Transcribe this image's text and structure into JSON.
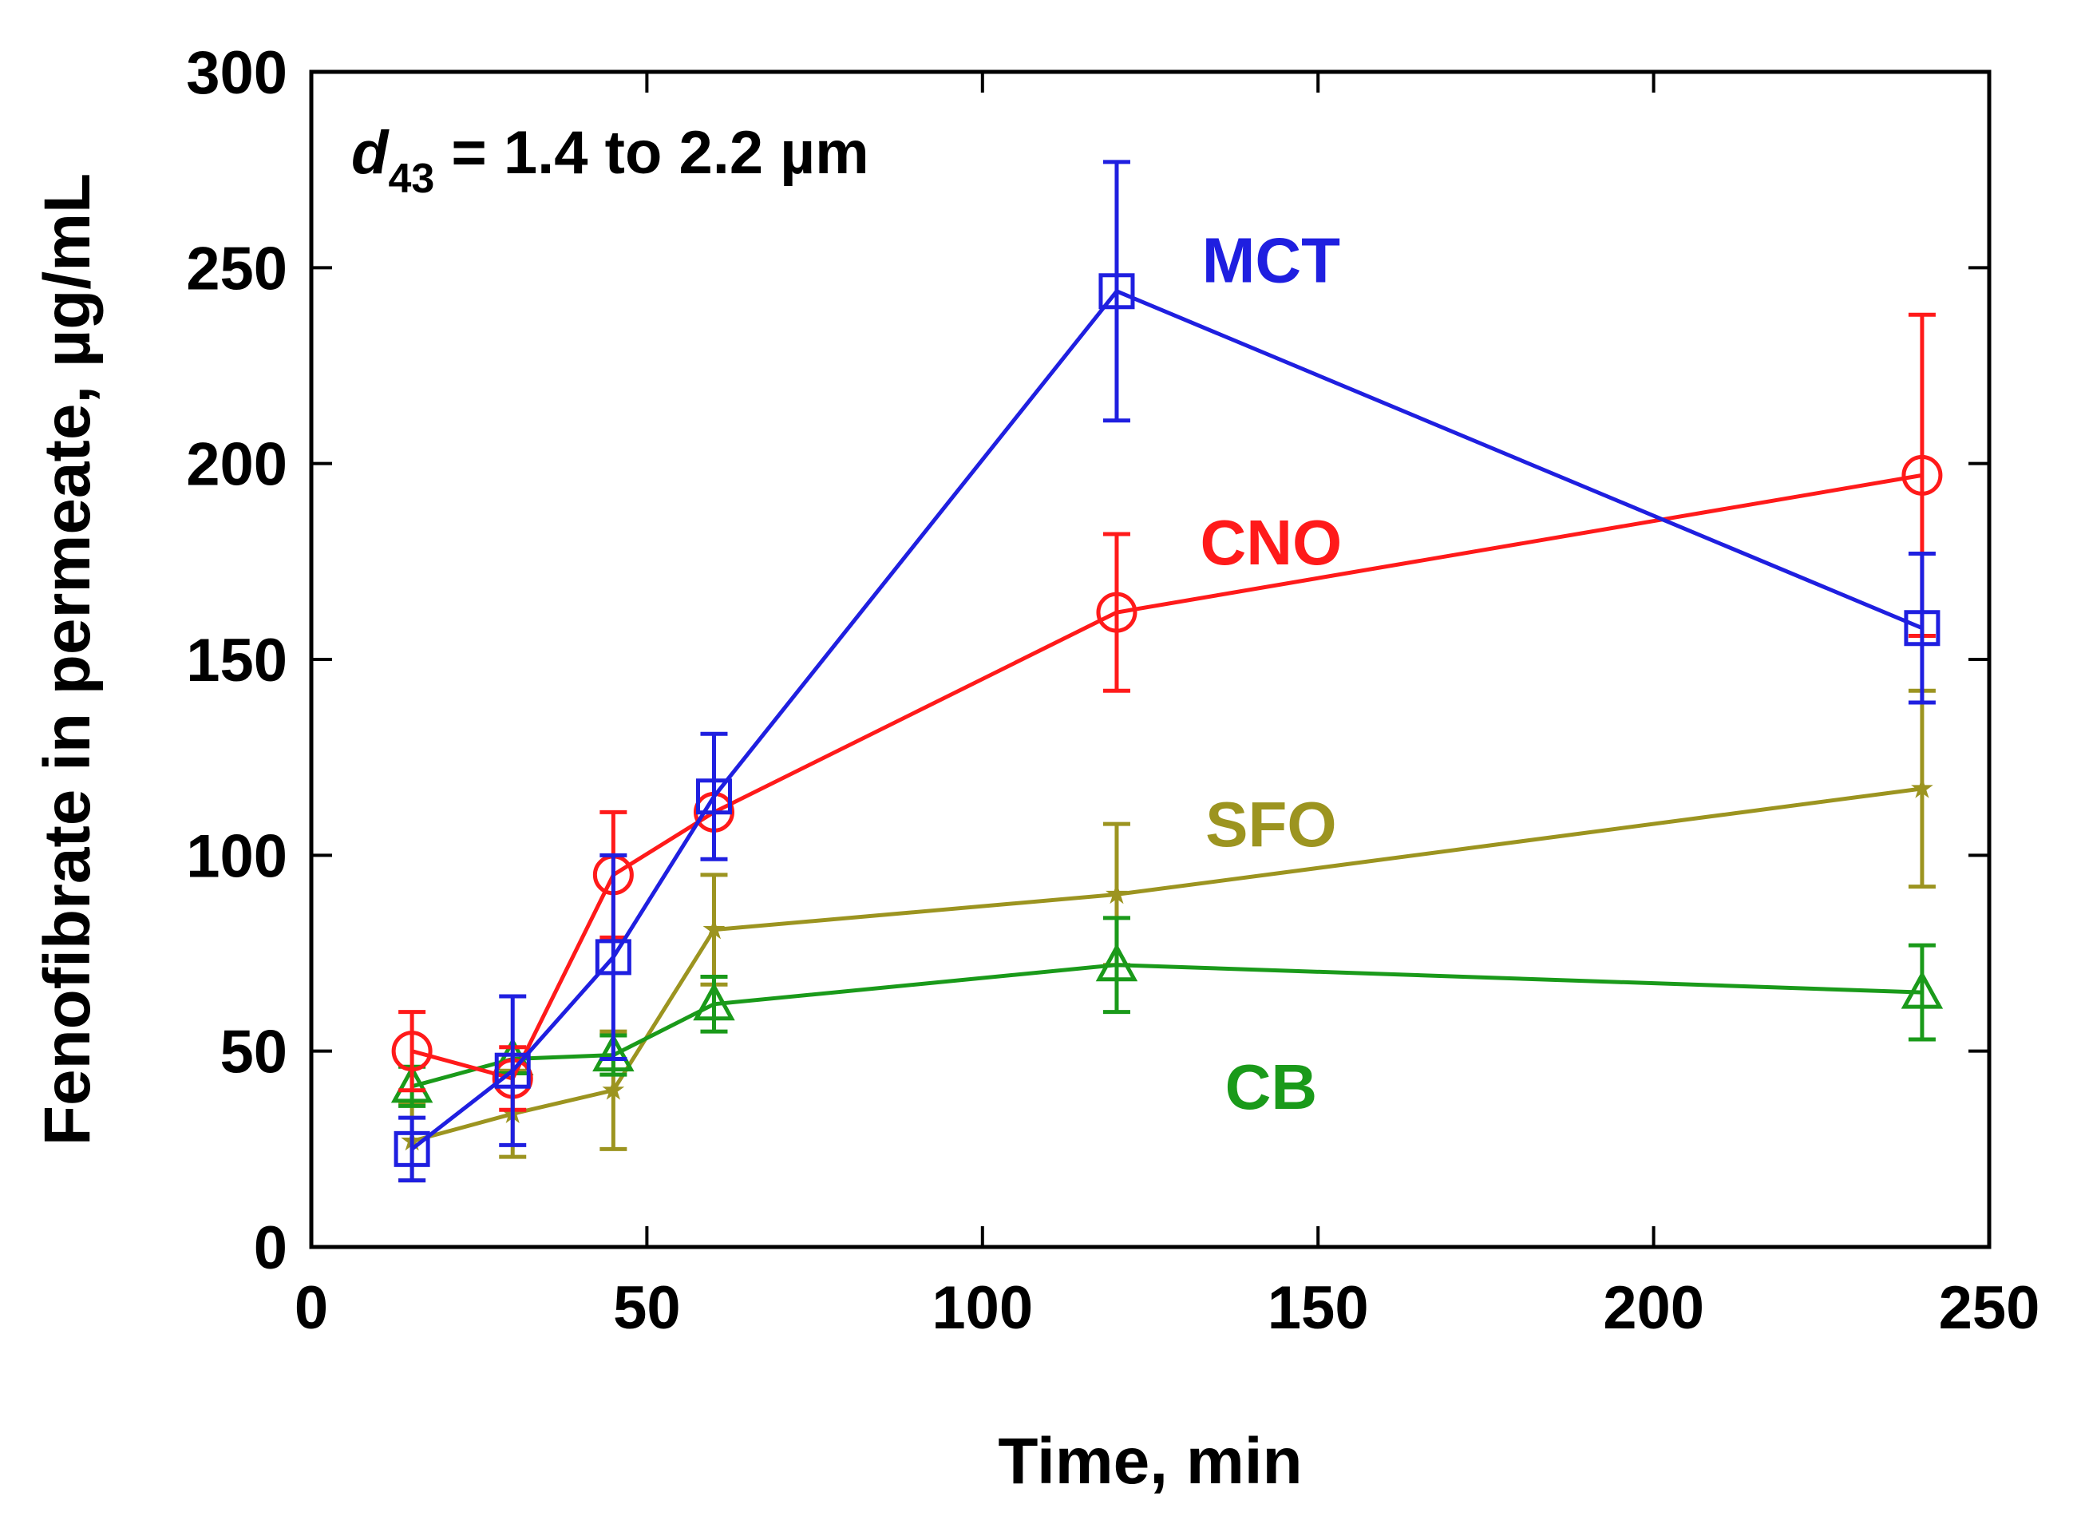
{
  "chart_data": {
    "type": "line",
    "title": "",
    "xlabel": "Time, min",
    "ylabel": "Fenofibrate in permeate, µg/mL",
    "xlim": [
      0,
      250
    ],
    "ylim": [
      0,
      300
    ],
    "xticks": [
      0,
      50,
      100,
      150,
      200,
      250
    ],
    "yticks": [
      0,
      50,
      100,
      150,
      200,
      250,
      300
    ],
    "grid": false,
    "annotation": {
      "symbol": "d",
      "subscript": "43",
      "text": " = 1.4 to 2.2 µm"
    },
    "series": [
      {
        "name": "MCT",
        "label": "MCT",
        "color": "#1f1fe0",
        "marker": "square",
        "x": [
          15,
          30,
          45,
          60,
          120,
          240
        ],
        "y": [
          25,
          45,
          74,
          115,
          244,
          158
        ],
        "err": [
          8,
          19,
          26,
          16,
          33,
          19
        ]
      },
      {
        "name": "CNO",
        "label": "CNO",
        "color": "#ff1a1a",
        "marker": "circle",
        "x": [
          15,
          30,
          45,
          60,
          120,
          240
        ],
        "y": [
          50,
          43,
          95,
          111,
          162,
          197
        ],
        "err": [
          10,
          8,
          16,
          0,
          20,
          41
        ]
      },
      {
        "name": "SFO",
        "label": "SFO",
        "color": "#9c9420",
        "marker": "star",
        "x": [
          15,
          30,
          45,
          60,
          120,
          240
        ],
        "y": [
          27,
          34,
          40,
          81,
          90,
          117
        ],
        "err": [
          10,
          11,
          15,
          14,
          18,
          25
        ]
      },
      {
        "name": "CB",
        "label": "CB",
        "color": "#1a9a1a",
        "marker": "triangle",
        "x": [
          15,
          30,
          45,
          60,
          120,
          240
        ],
        "y": [
          41,
          48,
          49,
          62,
          72,
          65
        ],
        "err": [
          5,
          0,
          5,
          7,
          12,
          12
        ]
      }
    ]
  }
}
